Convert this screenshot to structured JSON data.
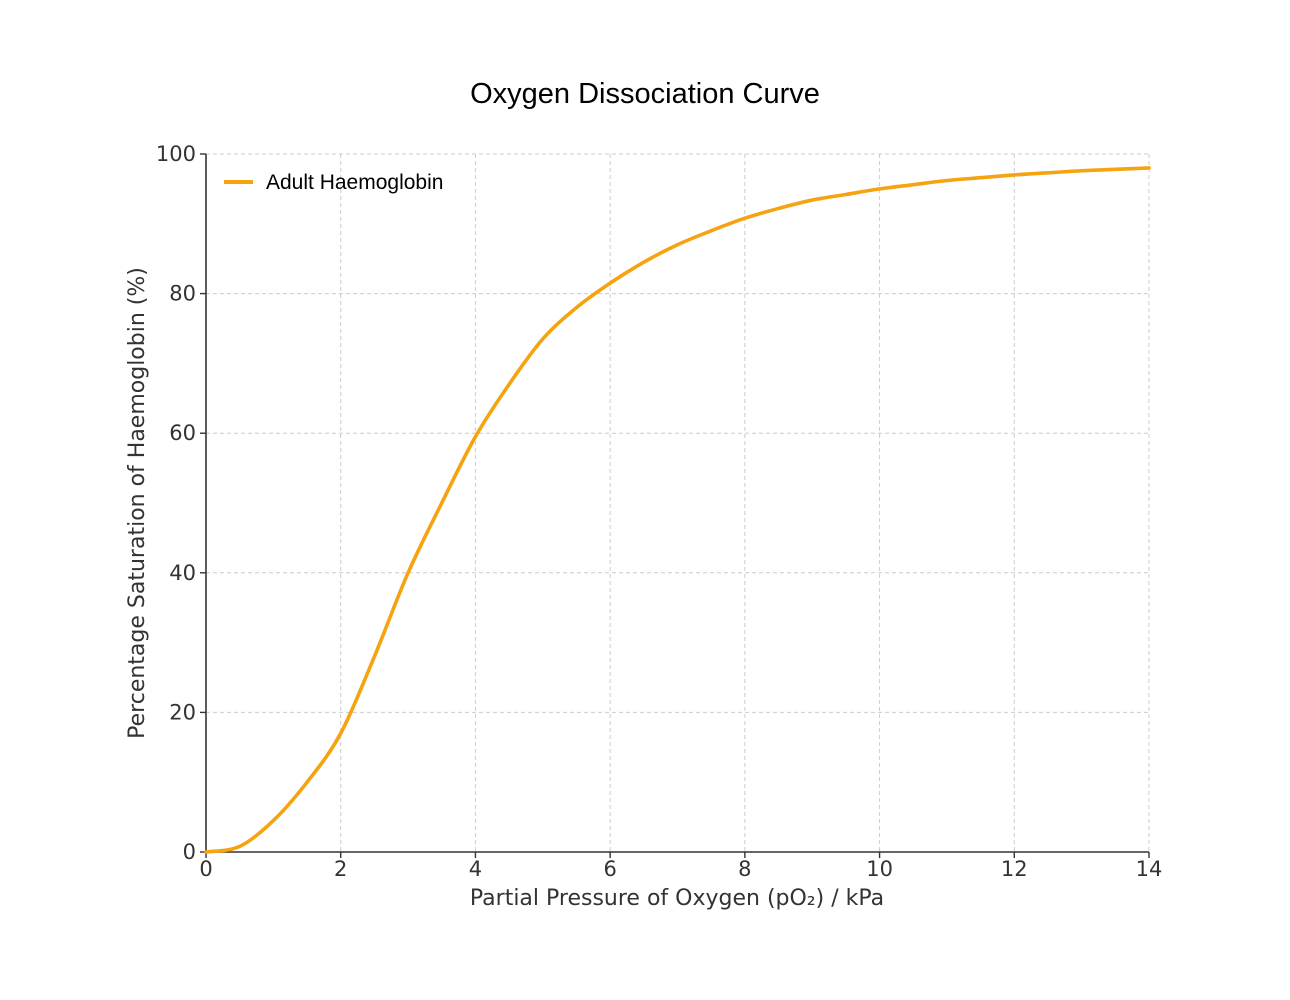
{
  "chart_data": {
    "type": "line",
    "title": "Oxygen Dissociation Curve",
    "xlabel": "Partial Pressure of Oxygen (pO₂) / kPa",
    "ylabel": "Percentage Saturation of Haemoglobin (%)",
    "xlim": [
      0,
      14
    ],
    "ylim": [
      0,
      100
    ],
    "xticks": [
      "0",
      "2",
      "4",
      "6",
      "8",
      "10",
      "12",
      "14"
    ],
    "yticks": [
      "0",
      "20",
      "40",
      "60",
      "80",
      "100"
    ],
    "grid": true,
    "legend_position": "top-left",
    "series": [
      {
        "name": "Adult Haemoglobin",
        "color": "#f5a30f",
        "x": [
          0,
          0.5,
          1,
          1.5,
          2,
          2.5,
          3,
          3.5,
          4,
          4.5,
          5,
          5.5,
          6,
          6.5,
          7,
          7.5,
          8,
          8.5,
          9,
          9.5,
          10,
          10.5,
          11,
          11.5,
          12,
          12.5,
          13,
          13.5,
          14
        ],
        "y": [
          0,
          0.8,
          4.5,
          10,
          17,
          28,
          40,
          50,
          59.5,
          67,
          73.5,
          78,
          81.5,
          84.5,
          87,
          89,
          90.8,
          92.2,
          93.4,
          94.2,
          95,
          95.6,
          96.2,
          96.6,
          97,
          97.3,
          97.6,
          97.8,
          98
        ]
      }
    ]
  }
}
